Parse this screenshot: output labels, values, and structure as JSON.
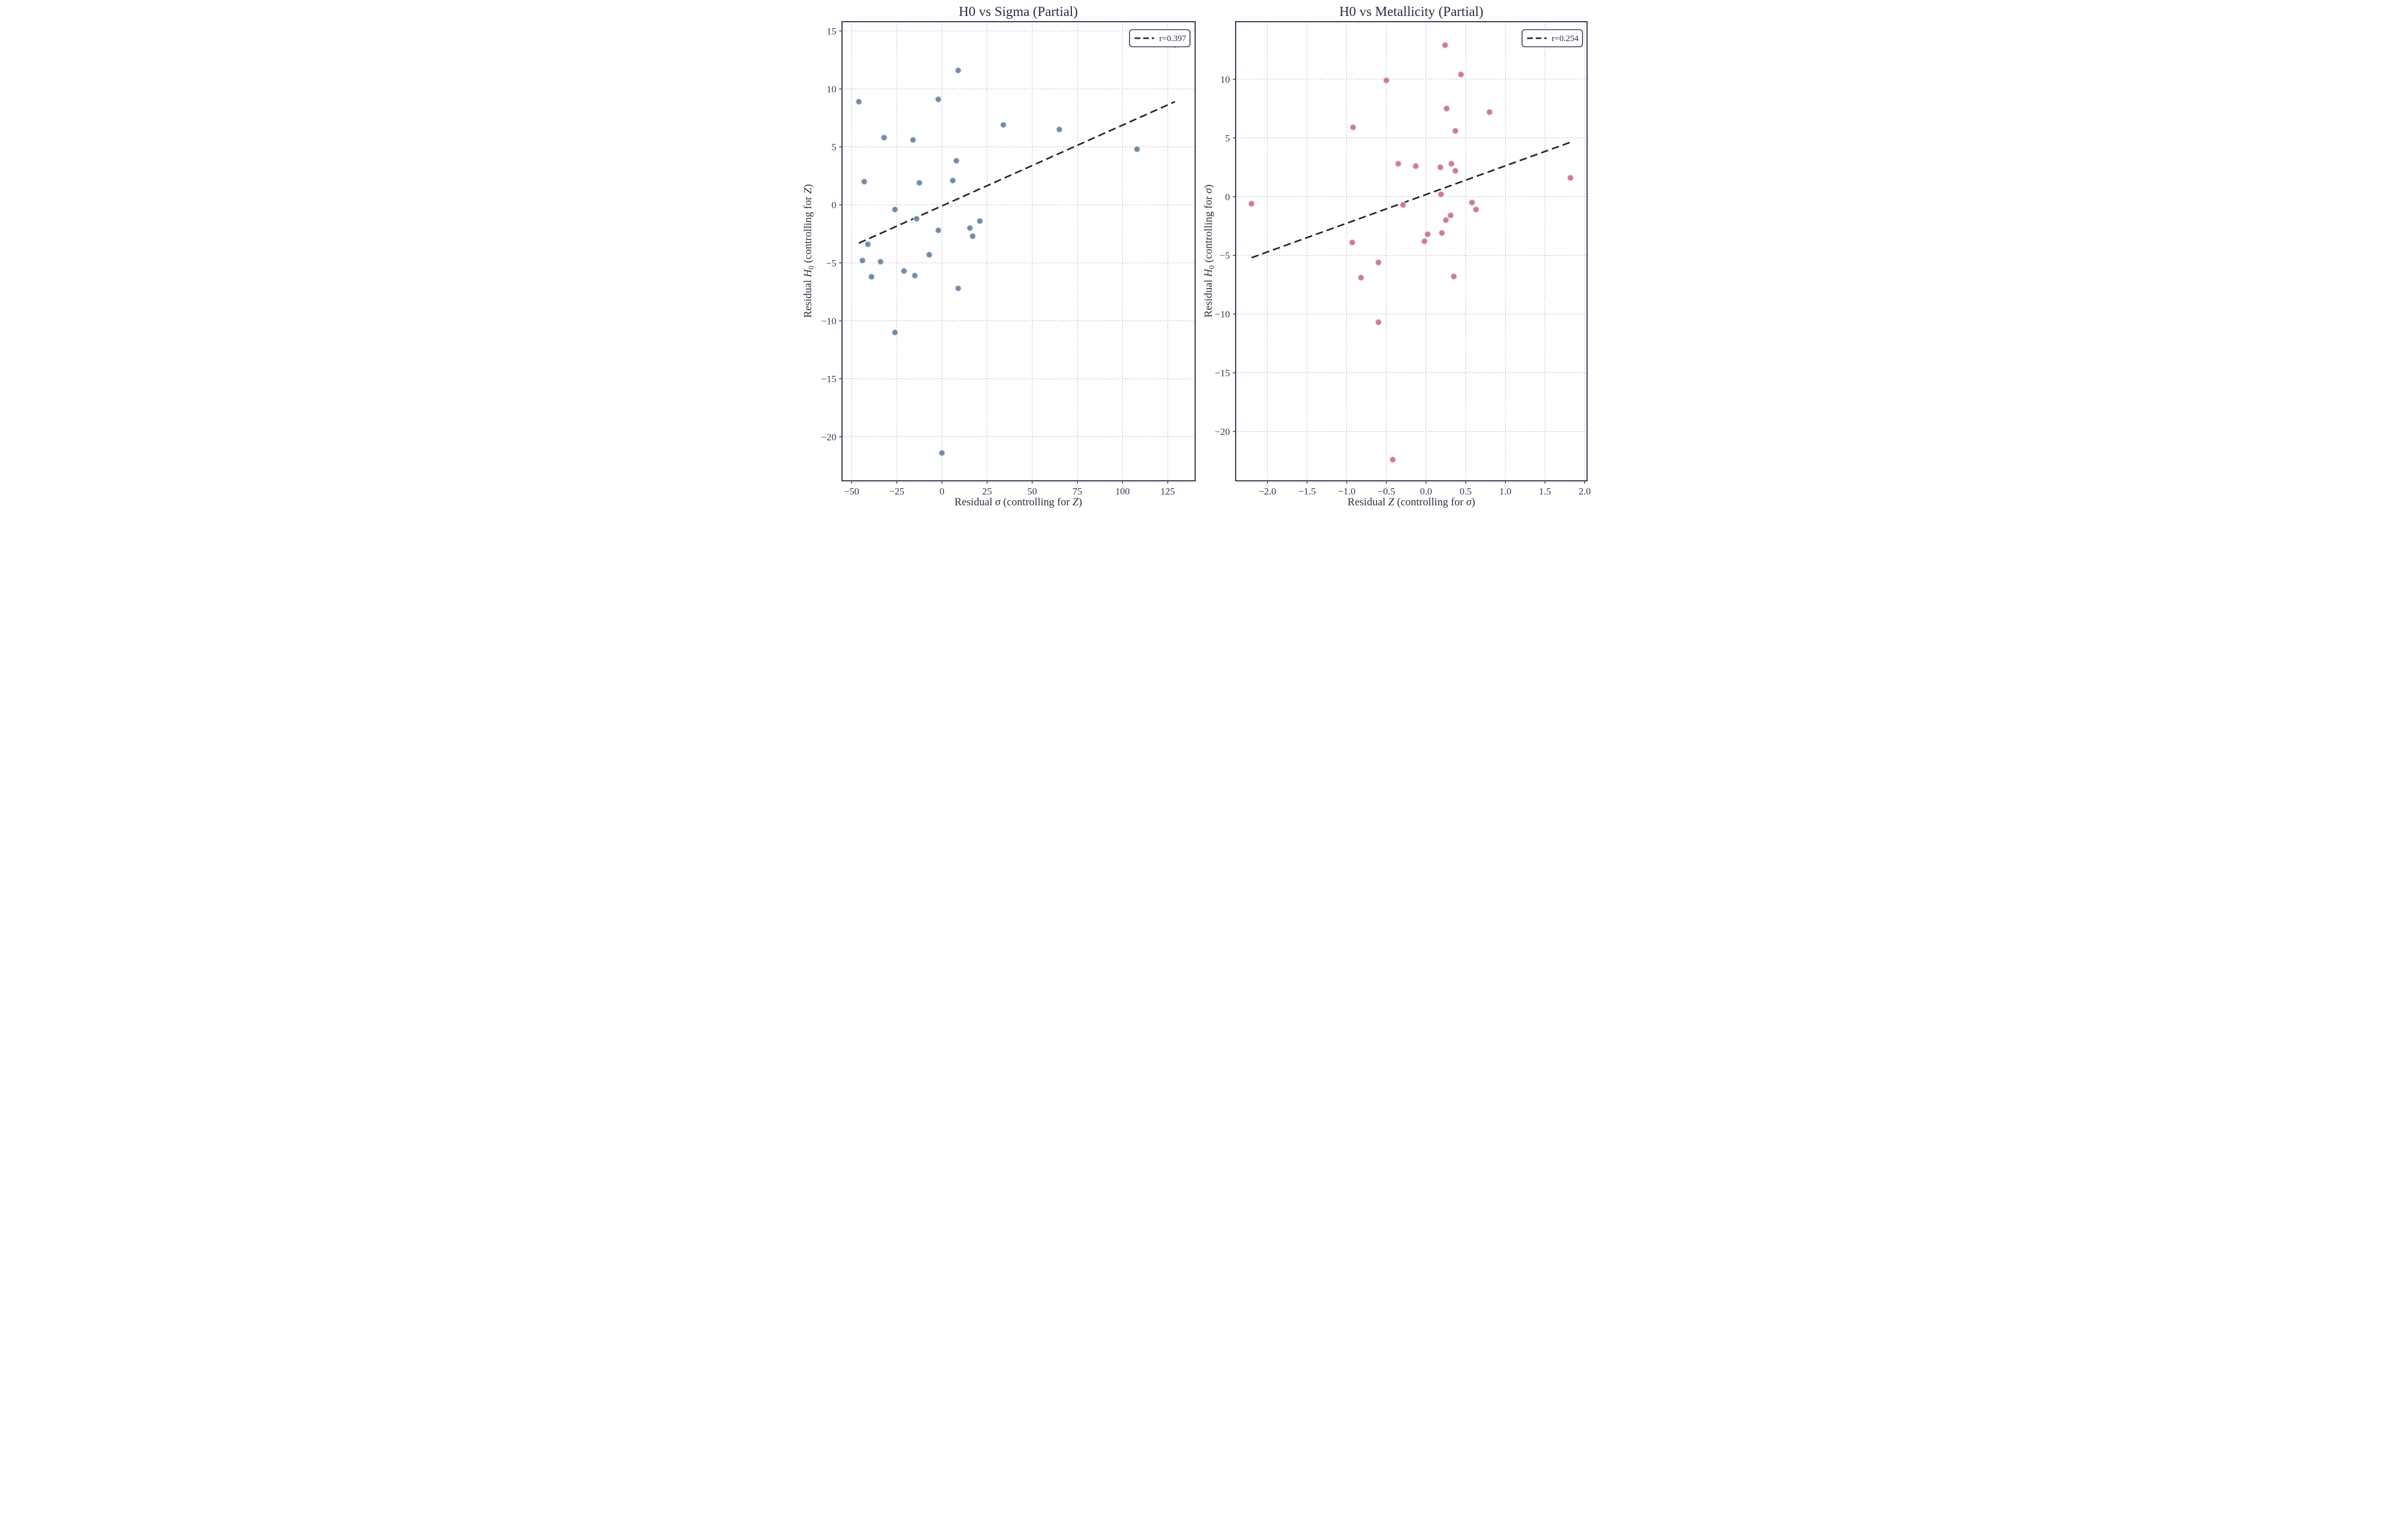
{
  "figure": {
    "background": "#ffffff",
    "spine_color": "#3e3650",
    "grid_color": "#a49cb0",
    "trend_color": "#2a2134",
    "text_color": "#322a3c"
  },
  "chart_data": [
    {
      "type": "scatter",
      "title": "H0 vs Sigma (Partial)",
      "legend": {
        "label": "r=0.397",
        "position": "upper right"
      },
      "marker": {
        "fill": "#6e87a5",
        "edge": "#dbe1eb"
      },
      "grid": true,
      "xlim": [
        -55.3,
        140.2
      ],
      "ylim": [
        -23.8,
        15.8
      ],
      "xticks": [
        -50,
        -25,
        0,
        25,
        50,
        75,
        100,
        125
      ],
      "xtick_labels": [
        "−50",
        "−25",
        "0",
        "25",
        "50",
        "75",
        "100",
        "125"
      ],
      "yticks": [
        15,
        10,
        5,
        0,
        -5,
        -10,
        -15,
        -20
      ],
      "ytick_labels": [
        "15",
        "10",
        "5",
        "0",
        "−5",
        "−10",
        "−15",
        "−20"
      ],
      "xlabel_parts": [
        {
          "text": "Residual "
        },
        {
          "text": "σ",
          "italic": true
        },
        {
          "text": " (controlling for "
        },
        {
          "text": "Z",
          "italic": true
        },
        {
          "text": ")"
        }
      ],
      "ylabel_parts": [
        {
          "text": "Residual "
        },
        {
          "text": "H",
          "italic": true
        },
        {
          "text": "0",
          "sub": true
        },
        {
          "text": " (controlling for "
        },
        {
          "text": "Z",
          "italic": true
        },
        {
          "text": ")"
        }
      ],
      "points": [
        [
          -46,
          8.9
        ],
        [
          -43,
          2.0
        ],
        [
          -44,
          -4.8
        ],
        [
          -41,
          -3.4
        ],
        [
          -39,
          -6.2
        ],
        [
          -34,
          -4.9
        ],
        [
          -32,
          5.8
        ],
        [
          -26,
          -0.4
        ],
        [
          -26,
          -11.0
        ],
        [
          -21,
          -5.7
        ],
        [
          -16,
          5.6
        ],
        [
          -15,
          -6.1
        ],
        [
          -14,
          -1.2
        ],
        [
          -12.5,
          1.9
        ],
        [
          -7,
          -4.3
        ],
        [
          -2,
          9.1
        ],
        [
          -2,
          -2.2
        ],
        [
          0,
          -21.4
        ],
        [
          6,
          2.1
        ],
        [
          8,
          3.8
        ],
        [
          9,
          11.6
        ],
        [
          9,
          -7.2
        ],
        [
          15.5,
          -2.0
        ],
        [
          17,
          -2.7
        ],
        [
          21,
          -1.4
        ],
        [
          34,
          6.9
        ],
        [
          65,
          6.5
        ],
        [
          108,
          4.8
        ],
        [
          129,
          13.8
        ]
      ],
      "trend_line": {
        "x1": -46,
        "y1": -3.3,
        "x2": 129,
        "y2": 8.9
      }
    },
    {
      "type": "scatter",
      "title": "H0 vs Metallicity (Partial)",
      "legend": {
        "label": "r=0.254",
        "position": "upper right"
      },
      "marker": {
        "fill": "#c9798c",
        "edge": "#eed4da"
      },
      "grid": true,
      "xlim": [
        -2.4,
        2.03
      ],
      "ylim": [
        -24.2,
        14.9
      ],
      "xticks": [
        -2.0,
        -1.5,
        -1.0,
        -0.5,
        0.0,
        0.5,
        1.0,
        1.5,
        2.0
      ],
      "xtick_labels": [
        "−2.0",
        "−1.5",
        "−1.0",
        "−0.5",
        "0.0",
        "0.5",
        "1.0",
        "1.5",
        "2.0"
      ],
      "yticks": [
        10,
        5,
        0,
        -5,
        -10,
        -15,
        -20
      ],
      "ytick_labels": [
        "10",
        "5",
        "0",
        "−5",
        "−10",
        "−15",
        "−20"
      ],
      "xlabel_parts": [
        {
          "text": "Residual "
        },
        {
          "text": "Z",
          "italic": true
        },
        {
          "text": " (controlling for "
        },
        {
          "text": "σ",
          "italic": true
        },
        {
          "text": ")"
        }
      ],
      "ylabel_parts": [
        {
          "text": "Residual "
        },
        {
          "text": "H",
          "italic": true
        },
        {
          "text": "0",
          "sub": true
        },
        {
          "text": " (controlling for "
        },
        {
          "text": "σ",
          "italic": true
        },
        {
          "text": ")"
        }
      ],
      "points": [
        [
          -2.2,
          -0.6
        ],
        [
          0.24,
          12.9
        ],
        [
          0.44,
          10.4
        ],
        [
          -0.5,
          9.9
        ],
        [
          0.26,
          7.5
        ],
        [
          0.8,
          7.2
        ],
        [
          -0.92,
          5.9
        ],
        [
          0.37,
          5.6
        ],
        [
          -0.35,
          2.8
        ],
        [
          -0.13,
          2.6
        ],
        [
          0.18,
          2.5
        ],
        [
          0.32,
          2.8
        ],
        [
          0.37,
          2.2
        ],
        [
          0.19,
          0.2
        ],
        [
          -0.29,
          -0.7
        ],
        [
          0.58,
          -0.5
        ],
        [
          0.63,
          -1.1
        ],
        [
          0.31,
          -1.6
        ],
        [
          0.25,
          -2.0
        ],
        [
          0.02,
          -3.2
        ],
        [
          0.2,
          -3.1
        ],
        [
          -0.02,
          -3.8
        ],
        [
          -0.93,
          -3.9
        ],
        [
          -0.6,
          -5.6
        ],
        [
          -0.82,
          -6.9
        ],
        [
          0.35,
          -6.8
        ],
        [
          -0.6,
          -10.7
        ],
        [
          -0.42,
          -22.4
        ],
        [
          1.82,
          1.6
        ]
      ],
      "trend_line": {
        "x1": -2.2,
        "y1": -5.2,
        "x2": 1.82,
        "y2": 4.63
      }
    }
  ]
}
